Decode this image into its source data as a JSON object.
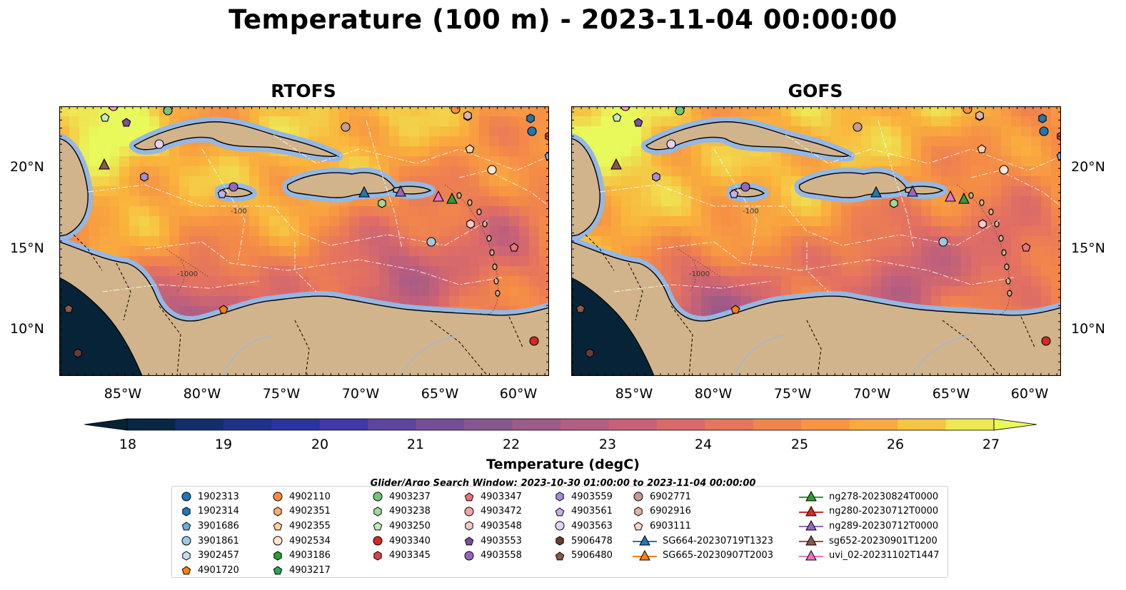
{
  "title": "Temperature (100 m) - 2023-11-04 00:00:00",
  "panels": [
    {
      "title": "RTOFS"
    },
    {
      "title": "GOFS"
    }
  ],
  "lat_labels": [
    "20°N",
    "15°N",
    "10°N"
  ],
  "lon_labels": [
    "85°W",
    "80°W",
    "75°W",
    "70°W",
    "65°W",
    "60°W"
  ],
  "contour_labels": [
    "-100",
    "-1000"
  ],
  "colorbar": {
    "label": "Temperature (degC)",
    "ticks": [
      "18",
      "19",
      "20",
      "21",
      "22",
      "23",
      "24",
      "25",
      "26",
      "27"
    ],
    "min": 18,
    "max": 27,
    "step": 0.5,
    "colormap": "thermal",
    "extend": "both"
  },
  "search_window": "Glider/Argo Search Window: 2023-10-30 01:00:00 to 2023-11-04 00:00:00",
  "legend_columns": [
    [
      {
        "label": "1902313",
        "marker": "circle",
        "color": "#1f77b4"
      },
      {
        "label": "1902314",
        "marker": "hexagon",
        "color": "#1f77b4"
      },
      {
        "label": "3901686",
        "marker": "pentagon",
        "color": "#6baed6"
      },
      {
        "label": "3901861",
        "marker": "circle",
        "color": "#9ecae1"
      },
      {
        "label": "3902457",
        "marker": "hexagon",
        "color": "#c6dbef"
      },
      {
        "label": "4901720",
        "marker": "pentagon",
        "color": "#ff7f0e"
      }
    ],
    [
      {
        "label": "4902110",
        "marker": "circle",
        "color": "#fd8d3c"
      },
      {
        "label": "4902351",
        "marker": "hexagon",
        "color": "#fdae6b"
      },
      {
        "label": "4902355",
        "marker": "pentagon",
        "color": "#fdd0a2"
      },
      {
        "label": "4902534",
        "marker": "circle",
        "color": "#fee6ce"
      },
      {
        "label": "4903186",
        "marker": "hexagon",
        "color": "#2ca02c"
      },
      {
        "label": "4903217",
        "marker": "pentagon",
        "color": "#31a354"
      }
    ],
    [
      {
        "label": "4903237",
        "marker": "circle",
        "color": "#74c476"
      },
      {
        "label": "4903238",
        "marker": "hexagon",
        "color": "#a1d99b"
      },
      {
        "label": "4903250",
        "marker": "pentagon",
        "color": "#c7e9c0"
      },
      {
        "label": "4903340",
        "marker": "circle",
        "color": "#d62728"
      },
      {
        "label": "4903345",
        "marker": "hexagon",
        "color": "#d6434a"
      }
    ],
    [
      {
        "label": "4903347",
        "marker": "pentagon",
        "color": "#e7757a"
      },
      {
        "label": "4903472",
        "marker": "circle",
        "color": "#f2a4a5"
      },
      {
        "label": "4903548",
        "marker": "hexagon",
        "color": "#f7c9c9"
      },
      {
        "label": "4903553",
        "marker": "pentagon",
        "color": "#7b4ea0"
      },
      {
        "label": "4903558",
        "marker": "circle",
        "color": "#9467bd"
      }
    ],
    [
      {
        "label": "4903559",
        "marker": "hexagon",
        "color": "#a88bd0"
      },
      {
        "label": "4903561",
        "marker": "pentagon",
        "color": "#c5b0e8"
      },
      {
        "label": "4903563",
        "marker": "circle",
        "color": "#e2d2f5"
      },
      {
        "label": "5906478",
        "marker": "hexagon",
        "color": "#6b3d2e"
      },
      {
        "label": "5906480",
        "marker": "pentagon",
        "color": "#8c564b"
      }
    ],
    [
      {
        "label": "6902771",
        "marker": "circle",
        "color": "#c49c94"
      },
      {
        "label": "6902916",
        "marker": "hexagon",
        "color": "#e0b4a8"
      },
      {
        "label": "6903111",
        "marker": "pentagon",
        "color": "#f5d6cc"
      },
      {
        "label": "SG664-20230719T1323",
        "marker": "triangle-line",
        "color": "#1f77b4"
      },
      {
        "label": "SG665-20230907T2003",
        "marker": "triangle-line",
        "color": "#ff7f0e"
      }
    ],
    [
      {
        "label": "ng278-20230824T0000",
        "marker": "triangle-line",
        "color": "#2ca02c"
      },
      {
        "label": "ng280-20230712T0000",
        "marker": "triangle-line",
        "color": "#d62728"
      },
      {
        "label": "ng289-20230712T0000",
        "marker": "triangle-line",
        "color": "#9467bd"
      },
      {
        "label": "sg652-20230901T1200",
        "marker": "triangle-line",
        "color": "#8c564b"
      },
      {
        "label": "uvi_02-20231102T1447",
        "marker": "triangle-line",
        "color": "#e377c2"
      }
    ]
  ],
  "colors": {
    "land": "#d2b48c",
    "shelf": "#95b7e3",
    "pacific": "#072338"
  }
}
